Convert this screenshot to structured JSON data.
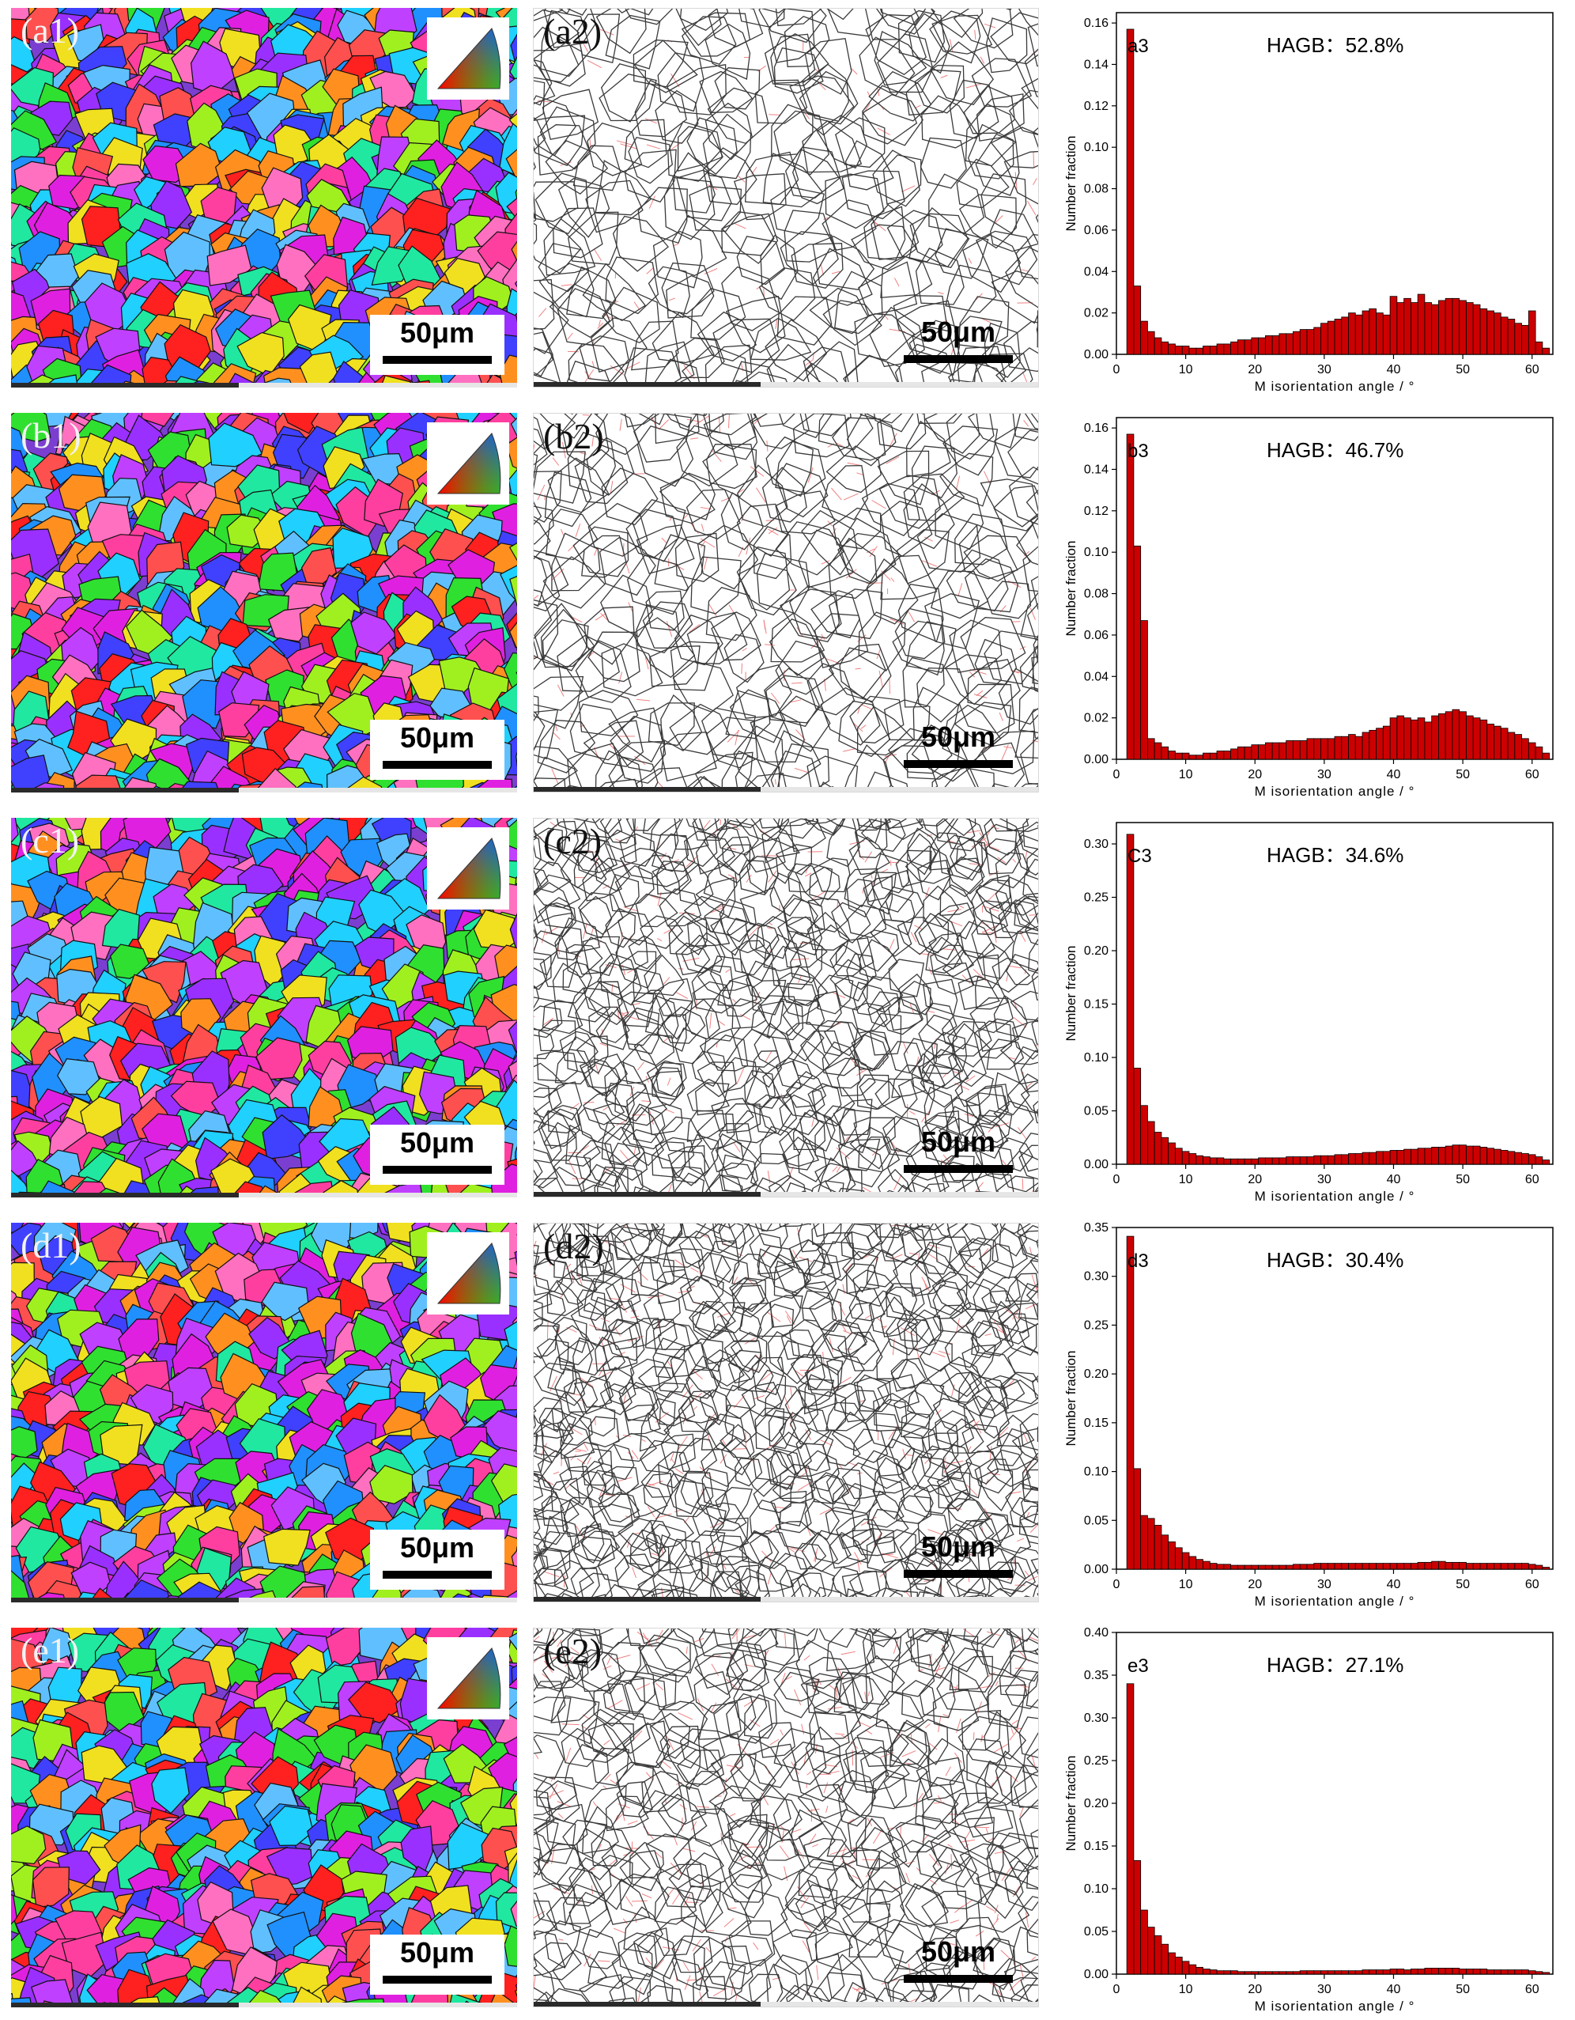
{
  "scale_label": "50μm",
  "rows": [
    {
      "ipf_label": "(a1)",
      "gb_label": "(a2)",
      "ipf_seed": 11,
      "gb_seed": 21,
      "gb_density": 0.9,
      "red_density": 0.35
    },
    {
      "ipf_label": "(b1)",
      "gb_label": "(b2)",
      "ipf_seed": 12,
      "gb_seed": 22,
      "gb_density": 0.9,
      "red_density": 0.6
    },
    {
      "ipf_label": "(c1)",
      "gb_label": "(c2)",
      "ipf_seed": 13,
      "gb_seed": 23,
      "gb_density": 1.3,
      "red_density": 0.8
    },
    {
      "ipf_label": "(d1)",
      "gb_label": "(d2)",
      "ipf_seed": 14,
      "gb_seed": 24,
      "gb_density": 1.35,
      "red_density": 1.0
    },
    {
      "ipf_label": "(e1)",
      "gb_label": "(e2)",
      "ipf_seed": 15,
      "gb_seed": 25,
      "gb_density": 1.1,
      "red_density": 1.2
    }
  ],
  "chart_data": [
    {
      "type": "bar",
      "panel_label": "a3",
      "annotation": "HAGB：52.8%",
      "xlabel": "M isorientation  angle / °",
      "ylabel": "Number fraction",
      "xlim": [
        0,
        63
      ],
      "ylim": [
        0,
        0.165
      ],
      "xticks": [
        0,
        10,
        20,
        30,
        40,
        50,
        60
      ],
      "yticks": [
        0.0,
        0.02,
        0.04,
        0.06,
        0.08,
        0.1,
        0.12,
        0.14,
        0.16
      ],
      "ytick_labels": [
        "0.00",
        "0.02",
        "0.04",
        "0.06",
        "0.08",
        "0.10",
        "0.12",
        "0.14",
        "0.16"
      ],
      "bar_color": "#cc0000",
      "x": [
        2,
        3,
        4,
        5,
        6,
        7,
        8,
        9,
        10,
        11,
        12,
        13,
        14,
        15,
        16,
        17,
        18,
        19,
        20,
        21,
        22,
        23,
        24,
        25,
        26,
        27,
        28,
        29,
        30,
        31,
        32,
        33,
        34,
        35,
        36,
        37,
        38,
        39,
        40,
        41,
        42,
        43,
        44,
        45,
        46,
        47,
        48,
        49,
        50,
        51,
        52,
        53,
        54,
        55,
        56,
        57,
        58,
        59,
        60,
        61,
        62
      ],
      "values": [
        0.157,
        0.033,
        0.016,
        0.011,
        0.008,
        0.006,
        0.005,
        0.004,
        0.004,
        0.003,
        0.003,
        0.004,
        0.004,
        0.005,
        0.005,
        0.006,
        0.007,
        0.007,
        0.008,
        0.008,
        0.009,
        0.009,
        0.01,
        0.01,
        0.011,
        0.012,
        0.012,
        0.013,
        0.015,
        0.016,
        0.017,
        0.018,
        0.02,
        0.019,
        0.021,
        0.022,
        0.02,
        0.019,
        0.028,
        0.025,
        0.027,
        0.025,
        0.029,
        0.025,
        0.024,
        0.026,
        0.027,
        0.027,
        0.026,
        0.025,
        0.024,
        0.022,
        0.021,
        0.02,
        0.018,
        0.017,
        0.015,
        0.014,
        0.021,
        0.006,
        0.003
      ]
    },
    {
      "type": "bar",
      "panel_label": "b3",
      "annotation": "HAGB：46.7%",
      "xlabel": "M isorientation  angle / °",
      "ylabel": "Number fraction",
      "xlim": [
        0,
        63
      ],
      "ylim": [
        0,
        0.165
      ],
      "xticks": [
        0,
        10,
        20,
        30,
        40,
        50,
        60
      ],
      "yticks": [
        0.0,
        0.02,
        0.04,
        0.06,
        0.08,
        0.1,
        0.12,
        0.14,
        0.16
      ],
      "ytick_labels": [
        "0.00",
        "0.02",
        "0.04",
        "0.06",
        "0.08",
        "0.10",
        "0.12",
        "0.14",
        "0.16"
      ],
      "bar_color": "#cc0000",
      "x": [
        2,
        3,
        4,
        5,
        6,
        7,
        8,
        9,
        10,
        11,
        12,
        13,
        14,
        15,
        16,
        17,
        18,
        19,
        20,
        21,
        22,
        23,
        24,
        25,
        26,
        27,
        28,
        29,
        30,
        31,
        32,
        33,
        34,
        35,
        36,
        37,
        38,
        39,
        40,
        41,
        42,
        43,
        44,
        45,
        46,
        47,
        48,
        49,
        50,
        51,
        52,
        53,
        54,
        55,
        56,
        57,
        58,
        59,
        60,
        61,
        62
      ],
      "values": [
        0.157,
        0.103,
        0.067,
        0.01,
        0.008,
        0.006,
        0.004,
        0.003,
        0.003,
        0.002,
        0.002,
        0.003,
        0.003,
        0.004,
        0.004,
        0.005,
        0.006,
        0.006,
        0.007,
        0.007,
        0.008,
        0.008,
        0.008,
        0.009,
        0.009,
        0.009,
        0.01,
        0.01,
        0.01,
        0.01,
        0.011,
        0.011,
        0.012,
        0.011,
        0.013,
        0.014,
        0.015,
        0.016,
        0.02,
        0.021,
        0.02,
        0.019,
        0.02,
        0.018,
        0.021,
        0.022,
        0.023,
        0.024,
        0.023,
        0.021,
        0.02,
        0.019,
        0.017,
        0.016,
        0.015,
        0.013,
        0.012,
        0.01,
        0.008,
        0.006,
        0.003
      ]
    },
    {
      "type": "bar",
      "panel_label": "C3",
      "annotation": "HAGB：34.6%",
      "xlabel": "M isorientation  angle / °",
      "ylabel": "Number fraction",
      "xlim": [
        0,
        63
      ],
      "ylim": [
        0,
        0.32
      ],
      "xticks": [
        0,
        10,
        20,
        30,
        40,
        50,
        60
      ],
      "yticks": [
        0.0,
        0.05,
        0.1,
        0.15,
        0.2,
        0.25,
        0.3
      ],
      "ytick_labels": [
        "0.00",
        "0.05",
        "0.10",
        "0.15",
        "0.20",
        "0.25",
        "0.30"
      ],
      "bar_color": "#cc0000",
      "x": [
        2,
        3,
        4,
        5,
        6,
        7,
        8,
        9,
        10,
        11,
        12,
        13,
        14,
        15,
        16,
        17,
        18,
        19,
        20,
        21,
        22,
        23,
        24,
        25,
        26,
        27,
        28,
        29,
        30,
        31,
        32,
        33,
        34,
        35,
        36,
        37,
        38,
        39,
        40,
        41,
        42,
        43,
        44,
        45,
        46,
        47,
        48,
        49,
        50,
        51,
        52,
        53,
        54,
        55,
        56,
        57,
        58,
        59,
        60,
        61,
        62
      ],
      "values": [
        0.309,
        0.09,
        0.055,
        0.04,
        0.03,
        0.025,
        0.02,
        0.015,
        0.012,
        0.01,
        0.008,
        0.007,
        0.006,
        0.006,
        0.005,
        0.005,
        0.005,
        0.005,
        0.005,
        0.006,
        0.006,
        0.006,
        0.006,
        0.007,
        0.007,
        0.007,
        0.007,
        0.008,
        0.008,
        0.008,
        0.009,
        0.009,
        0.01,
        0.01,
        0.011,
        0.011,
        0.012,
        0.012,
        0.013,
        0.013,
        0.014,
        0.014,
        0.015,
        0.015,
        0.016,
        0.016,
        0.017,
        0.018,
        0.018,
        0.017,
        0.017,
        0.016,
        0.015,
        0.014,
        0.013,
        0.012,
        0.011,
        0.01,
        0.009,
        0.007,
        0.004
      ]
    },
    {
      "type": "bar",
      "panel_label": "d3",
      "annotation": "HAGB：30.4%",
      "xlabel": "M isorientation  angle / °",
      "ylabel": "Number fraction",
      "xlim": [
        0,
        63
      ],
      "ylim": [
        0,
        0.35
      ],
      "xticks": [
        0,
        10,
        20,
        30,
        40,
        50,
        60
      ],
      "yticks": [
        0.0,
        0.05,
        0.1,
        0.15,
        0.2,
        0.25,
        0.3,
        0.35
      ],
      "ytick_labels": [
        "0.00",
        "0.05",
        "0.10",
        "0.15",
        "0.20",
        "0.25",
        "0.30",
        "0.35"
      ],
      "bar_color": "#cc0000",
      "x": [
        2,
        3,
        4,
        5,
        6,
        7,
        8,
        9,
        10,
        11,
        12,
        13,
        14,
        15,
        16,
        17,
        18,
        19,
        20,
        21,
        22,
        23,
        24,
        25,
        26,
        27,
        28,
        29,
        30,
        31,
        32,
        33,
        34,
        35,
        36,
        37,
        38,
        39,
        40,
        41,
        42,
        43,
        44,
        45,
        46,
        47,
        48,
        49,
        50,
        51,
        52,
        53,
        54,
        55,
        56,
        57,
        58,
        59,
        60,
        61,
        62
      ],
      "values": [
        0.341,
        0.103,
        0.055,
        0.052,
        0.045,
        0.035,
        0.028,
        0.022,
        0.017,
        0.013,
        0.01,
        0.008,
        0.006,
        0.005,
        0.005,
        0.004,
        0.004,
        0.004,
        0.004,
        0.004,
        0.004,
        0.004,
        0.004,
        0.004,
        0.005,
        0.005,
        0.005,
        0.006,
        0.006,
        0.006,
        0.006,
        0.006,
        0.006,
        0.006,
        0.006,
        0.006,
        0.006,
        0.006,
        0.006,
        0.006,
        0.006,
        0.006,
        0.007,
        0.007,
        0.008,
        0.008,
        0.007,
        0.007,
        0.007,
        0.006,
        0.006,
        0.006,
        0.006,
        0.006,
        0.006,
        0.006,
        0.006,
        0.006,
        0.005,
        0.004,
        0.002
      ]
    },
    {
      "type": "bar",
      "panel_label": "e3",
      "annotation": "HAGB：27.1%",
      "xlabel": "M isorientation  angle / °",
      "ylabel": "Number fraction",
      "xlim": [
        0,
        63
      ],
      "ylim": [
        0,
        0.4
      ],
      "xticks": [
        0,
        10,
        20,
        30,
        40,
        50,
        60
      ],
      "yticks": [
        0.0,
        0.05,
        0.1,
        0.15,
        0.2,
        0.25,
        0.3,
        0.35,
        0.4
      ],
      "ytick_labels": [
        "0.00",
        "0.05",
        "0.10",
        "0.15",
        "0.20",
        "0.25",
        "0.30",
        "0.35",
        "0.40"
      ],
      "bar_color": "#cc0000",
      "x": [
        2,
        3,
        4,
        5,
        6,
        7,
        8,
        9,
        10,
        11,
        12,
        13,
        14,
        15,
        16,
        17,
        18,
        19,
        20,
        21,
        22,
        23,
        24,
        25,
        26,
        27,
        28,
        29,
        30,
        31,
        32,
        33,
        34,
        35,
        36,
        37,
        38,
        39,
        40,
        41,
        42,
        43,
        44,
        45,
        46,
        47,
        48,
        49,
        50,
        51,
        52,
        53,
        54,
        55,
        56,
        57,
        58,
        59,
        60,
        61,
        62
      ],
      "values": [
        0.34,
        0.133,
        0.075,
        0.055,
        0.045,
        0.035,
        0.025,
        0.02,
        0.015,
        0.011,
        0.008,
        0.006,
        0.005,
        0.004,
        0.004,
        0.004,
        0.003,
        0.003,
        0.003,
        0.003,
        0.003,
        0.003,
        0.003,
        0.003,
        0.003,
        0.004,
        0.004,
        0.004,
        0.004,
        0.004,
        0.004,
        0.004,
        0.004,
        0.004,
        0.005,
        0.005,
        0.005,
        0.005,
        0.006,
        0.006,
        0.005,
        0.006,
        0.006,
        0.007,
        0.007,
        0.007,
        0.007,
        0.007,
        0.006,
        0.006,
        0.006,
        0.006,
        0.005,
        0.005,
        0.005,
        0.005,
        0.005,
        0.005,
        0.004,
        0.003,
        0.002
      ]
    }
  ]
}
